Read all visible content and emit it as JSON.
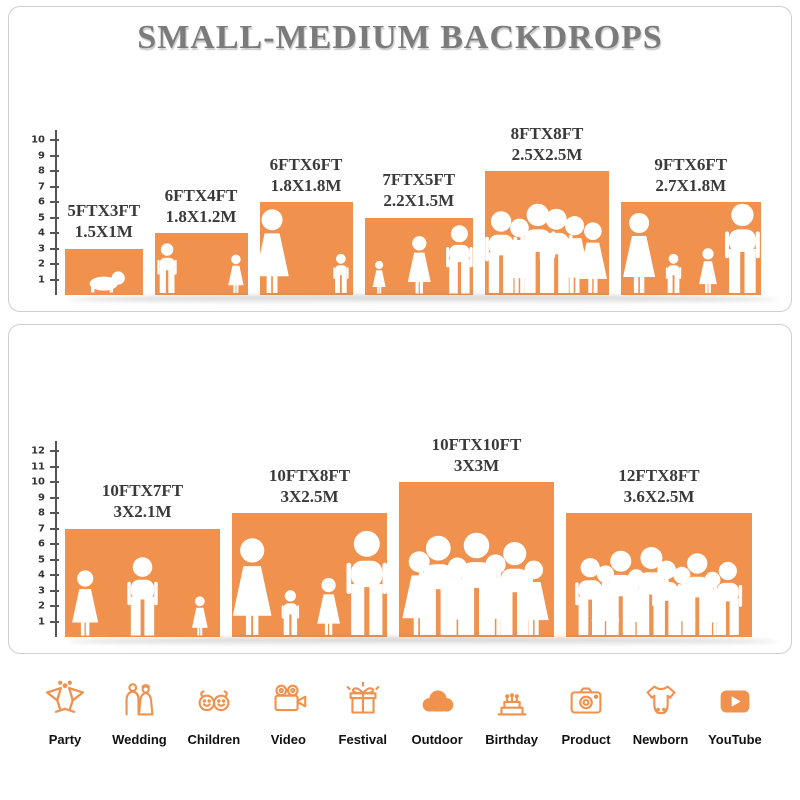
{
  "title": "SMALL-MEDIUM BACKDROPS",
  "accent_color": "#F0914D",
  "panels": [
    {
      "ruler_numbers": [
        10,
        9,
        8,
        7,
        6,
        5,
        4,
        3,
        2,
        1
      ],
      "backdrops": [
        {
          "size_ft": "5FTX3FT",
          "size_m": "1.5X1M",
          "width_ft": 5,
          "height_ft": 3,
          "people": "crawling baby"
        },
        {
          "size_ft": "6FTX4FT",
          "size_m": "1.8X1.2M",
          "width_ft": 6,
          "height_ft": 4,
          "people": "two children"
        },
        {
          "size_ft": "6FTX6FT",
          "size_m": "1.8X1.8M",
          "width_ft": 6,
          "height_ft": 6,
          "people": "mother with child"
        },
        {
          "size_ft": "7FTX5FT",
          "size_m": "2.2X1.5M",
          "width_ft": 7,
          "height_ft": 5,
          "people": "family of three"
        },
        {
          "size_ft": "8FTX8FT",
          "size_m": "2.5X2.5M",
          "width_ft": 8,
          "height_ft": 8,
          "people": "group of six"
        },
        {
          "size_ft": "9FTX6FT",
          "size_m": "2.7X1.8M",
          "width_ft": 9,
          "height_ft": 6,
          "people": "family of four"
        }
      ]
    },
    {
      "ruler_numbers": [
        12,
        11,
        10,
        9,
        8,
        7,
        6,
        5,
        4,
        3,
        2,
        1
      ],
      "backdrops": [
        {
          "size_ft": "10FTX7FT",
          "size_m": "3X2.1M",
          "width_ft": 10,
          "height_ft": 7,
          "people": "family of three"
        },
        {
          "size_ft": "10FTX8FT",
          "size_m": "3X2.5M",
          "width_ft": 10,
          "height_ft": 8,
          "people": "family of four"
        },
        {
          "size_ft": "10FTX10FT",
          "size_m": "3X3M",
          "width_ft": 10,
          "height_ft": 10,
          "people": "group of seven"
        },
        {
          "size_ft": "12FTX8FT",
          "size_m": "3.6X2.5M",
          "width_ft": 12,
          "height_ft": 8,
          "people": "group of ten"
        }
      ]
    }
  ],
  "categories": [
    {
      "label": "Party",
      "icon": "party-icon"
    },
    {
      "label": "Wedding",
      "icon": "wedding-icon"
    },
    {
      "label": "Children",
      "icon": "children-icon"
    },
    {
      "label": "Video",
      "icon": "video-icon"
    },
    {
      "label": "Festival",
      "icon": "festival-icon"
    },
    {
      "label": "Outdoor",
      "icon": "outdoor-icon"
    },
    {
      "label": "Birthday",
      "icon": "birthday-icon"
    },
    {
      "label": "Product",
      "icon": "product-icon"
    },
    {
      "label": "Newborn",
      "icon": "newborn-icon"
    },
    {
      "label": "YouTube",
      "icon": "youtube-icon"
    }
  ]
}
